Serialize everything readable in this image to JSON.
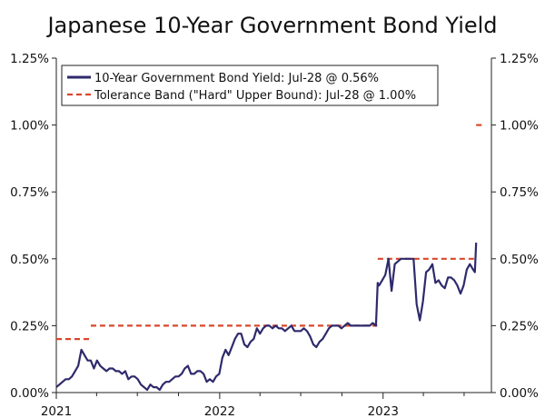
{
  "chart_data": {
    "type": "line",
    "title": "Japanese 10-Year Government Bond Yield",
    "xlim": [
      "2021-01-01",
      "2023-08-31"
    ],
    "ylim": [
      0,
      1.25
    ],
    "y_ticks": [
      "0.00%",
      "0.25%",
      "0.50%",
      "0.75%",
      "1.00%",
      "1.25%"
    ],
    "x_ticks": [
      "2021",
      "2022",
      "2023"
    ],
    "grid": false,
    "legend_position": "top-left",
    "colors": {
      "yield": "#2e2a6b",
      "band": "#d9472b"
    },
    "series": [
      {
        "name": "10-Year Government Bond Yield: Jul-28 @ 0.56%",
        "style": "solid",
        "points": [
          [
            "2021-01-01",
            0.02
          ],
          [
            "2021-01-08",
            0.03
          ],
          [
            "2021-01-15",
            0.04
          ],
          [
            "2021-01-22",
            0.05
          ],
          [
            "2021-01-29",
            0.05
          ],
          [
            "2021-02-05",
            0.06
          ],
          [
            "2021-02-12",
            0.08
          ],
          [
            "2021-02-19",
            0.1
          ],
          [
            "2021-02-26",
            0.16
          ],
          [
            "2021-03-05",
            0.14
          ],
          [
            "2021-03-12",
            0.12
          ],
          [
            "2021-03-19",
            0.12
          ],
          [
            "2021-03-26",
            0.09
          ],
          [
            "2021-04-02",
            0.12
          ],
          [
            "2021-04-09",
            0.1
          ],
          [
            "2021-04-16",
            0.09
          ],
          [
            "2021-04-23",
            0.08
          ],
          [
            "2021-04-30",
            0.09
          ],
          [
            "2021-05-07",
            0.09
          ],
          [
            "2021-05-14",
            0.08
          ],
          [
            "2021-05-21",
            0.08
          ],
          [
            "2021-05-28",
            0.07
          ],
          [
            "2021-06-04",
            0.08
          ],
          [
            "2021-06-11",
            0.05
          ],
          [
            "2021-06-18",
            0.06
          ],
          [
            "2021-06-25",
            0.06
          ],
          [
            "2021-07-02",
            0.05
          ],
          [
            "2021-07-09",
            0.03
          ],
          [
            "2021-07-16",
            0.02
          ],
          [
            "2021-07-23",
            0.01
          ],
          [
            "2021-07-30",
            0.03
          ],
          [
            "2021-08-06",
            0.02
          ],
          [
            "2021-08-13",
            0.02
          ],
          [
            "2021-08-20",
            0.01
          ],
          [
            "2021-08-27",
            0.03
          ],
          [
            "2021-09-03",
            0.04
          ],
          [
            "2021-09-10",
            0.04
          ],
          [
            "2021-09-17",
            0.05
          ],
          [
            "2021-09-24",
            0.06
          ],
          [
            "2021-10-01",
            0.06
          ],
          [
            "2021-10-08",
            0.07
          ],
          [
            "2021-10-15",
            0.09
          ],
          [
            "2021-10-22",
            0.1
          ],
          [
            "2021-10-29",
            0.07
          ],
          [
            "2021-11-05",
            0.07
          ],
          [
            "2021-11-12",
            0.08
          ],
          [
            "2021-11-19",
            0.08
          ],
          [
            "2021-11-26",
            0.07
          ],
          [
            "2021-12-03",
            0.04
          ],
          [
            "2021-12-10",
            0.05
          ],
          [
            "2021-12-17",
            0.04
          ],
          [
            "2021-12-24",
            0.06
          ],
          [
            "2021-12-31",
            0.07
          ],
          [
            "2022-01-07",
            0.13
          ],
          [
            "2022-01-14",
            0.16
          ],
          [
            "2022-01-21",
            0.14
          ],
          [
            "2022-01-28",
            0.17
          ],
          [
            "2022-02-04",
            0.2
          ],
          [
            "2022-02-11",
            0.22
          ],
          [
            "2022-02-18",
            0.22
          ],
          [
            "2022-02-25",
            0.18
          ],
          [
            "2022-03-04",
            0.17
          ],
          [
            "2022-03-11",
            0.19
          ],
          [
            "2022-03-18",
            0.2
          ],
          [
            "2022-03-25",
            0.24
          ],
          [
            "2022-04-01",
            0.22
          ],
          [
            "2022-04-08",
            0.24
          ],
          [
            "2022-04-15",
            0.25
          ],
          [
            "2022-04-22",
            0.25
          ],
          [
            "2022-04-29",
            0.24
          ],
          [
            "2022-05-06",
            0.25
          ],
          [
            "2022-05-13",
            0.24
          ],
          [
            "2022-05-20",
            0.24
          ],
          [
            "2022-05-27",
            0.23
          ],
          [
            "2022-06-03",
            0.24
          ],
          [
            "2022-06-10",
            0.25
          ],
          [
            "2022-06-17",
            0.23
          ],
          [
            "2022-06-24",
            0.23
          ],
          [
            "2022-07-01",
            0.23
          ],
          [
            "2022-07-08",
            0.24
          ],
          [
            "2022-07-15",
            0.23
          ],
          [
            "2022-07-22",
            0.21
          ],
          [
            "2022-07-29",
            0.18
          ],
          [
            "2022-08-05",
            0.17
          ],
          [
            "2022-08-12",
            0.19
          ],
          [
            "2022-08-19",
            0.2
          ],
          [
            "2022-08-26",
            0.22
          ],
          [
            "2022-09-02",
            0.24
          ],
          [
            "2022-09-09",
            0.25
          ],
          [
            "2022-09-16",
            0.25
          ],
          [
            "2022-09-23",
            0.25
          ],
          [
            "2022-09-30",
            0.24
          ],
          [
            "2022-10-07",
            0.25
          ],
          [
            "2022-10-14",
            0.26
          ],
          [
            "2022-10-21",
            0.25
          ],
          [
            "2022-10-28",
            0.25
          ],
          [
            "2022-11-04",
            0.25
          ],
          [
            "2022-11-11",
            0.25
          ],
          [
            "2022-11-18",
            0.25
          ],
          [
            "2022-11-25",
            0.25
          ],
          [
            "2022-12-02",
            0.25
          ],
          [
            "2022-12-09",
            0.26
          ],
          [
            "2022-12-16",
            0.25
          ],
          [
            "2022-12-20",
            0.41
          ],
          [
            "2022-12-23",
            0.4
          ],
          [
            "2022-12-30",
            0.42
          ],
          [
            "2023-01-06",
            0.44
          ],
          [
            "2023-01-13",
            0.5
          ],
          [
            "2023-01-20",
            0.38
          ],
          [
            "2023-01-27",
            0.48
          ],
          [
            "2023-02-03",
            0.49
          ],
          [
            "2023-02-10",
            0.5
          ],
          [
            "2023-02-17",
            0.5
          ],
          [
            "2023-02-24",
            0.5
          ],
          [
            "2023-03-03",
            0.5
          ],
          [
            "2023-03-10",
            0.5
          ],
          [
            "2023-03-17",
            0.33
          ],
          [
            "2023-03-24",
            0.27
          ],
          [
            "2023-03-31",
            0.34
          ],
          [
            "2023-04-07",
            0.45
          ],
          [
            "2023-04-14",
            0.46
          ],
          [
            "2023-04-21",
            0.48
          ],
          [
            "2023-04-28",
            0.41
          ],
          [
            "2023-05-05",
            0.42
          ],
          [
            "2023-05-12",
            0.4
          ],
          [
            "2023-05-19",
            0.39
          ],
          [
            "2023-05-26",
            0.43
          ],
          [
            "2023-06-02",
            0.43
          ],
          [
            "2023-06-09",
            0.42
          ],
          [
            "2023-06-16",
            0.4
          ],
          [
            "2023-06-23",
            0.37
          ],
          [
            "2023-06-30",
            0.4
          ],
          [
            "2023-07-07",
            0.46
          ],
          [
            "2023-07-14",
            0.48
          ],
          [
            "2023-07-21",
            0.46
          ],
          [
            "2023-07-25",
            0.45
          ],
          [
            "2023-07-28",
            0.56
          ]
        ]
      },
      {
        "name": "Tolerance Band (\"Hard\" Upper Bound): Jul-28 @ 1.00%",
        "style": "dashed",
        "segments": [
          {
            "x": [
              "2021-01-01",
              "2021-03-18"
            ],
            "y": 0.2
          },
          {
            "x": [
              "2021-03-19",
              "2022-12-19"
            ],
            "y": 0.25
          },
          {
            "x": [
              "2022-12-20",
              "2023-07-27"
            ],
            "y": 0.5
          },
          {
            "x": [
              "2023-07-28",
              "2023-08-15"
            ],
            "y": 1.0
          }
        ]
      }
    ]
  }
}
